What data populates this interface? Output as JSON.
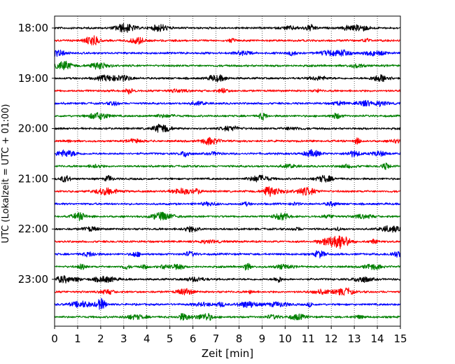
{
  "chart_data": {
    "type": "line",
    "title": "",
    "xlabel": "Zeit  [min]",
    "ylabel": "UTC (Lokalzeit = UTC + 01:00)",
    "xlim": [
      0,
      15
    ],
    "x_ticks": [
      "0",
      "1",
      "2",
      "3",
      "4",
      "5",
      "6",
      "7",
      "8",
      "9",
      "10",
      "11",
      "12",
      "13",
      "14",
      "15"
    ],
    "y_ticks": [
      "18:00",
      "19:00",
      "20:00",
      "21:00",
      "22:00",
      "23:00"
    ],
    "grid": "vertical dotted at each minute",
    "legend": "none",
    "trace_interval_minutes": 15,
    "series": [
      {
        "start": "18:00",
        "color": "#000000"
      },
      {
        "start": "18:15",
        "color": "#ff0000"
      },
      {
        "start": "18:30",
        "color": "#0000ff"
      },
      {
        "start": "18:45",
        "color": "#008000"
      },
      {
        "start": "19:00",
        "color": "#000000"
      },
      {
        "start": "19:15",
        "color": "#ff0000"
      },
      {
        "start": "19:30",
        "color": "#0000ff"
      },
      {
        "start": "19:45",
        "color": "#008000"
      },
      {
        "start": "20:00",
        "color": "#000000"
      },
      {
        "start": "20:15",
        "color": "#ff0000"
      },
      {
        "start": "20:30",
        "color": "#0000ff"
      },
      {
        "start": "20:45",
        "color": "#008000"
      },
      {
        "start": "21:00",
        "color": "#000000"
      },
      {
        "start": "21:15",
        "color": "#ff0000"
      },
      {
        "start": "21:30",
        "color": "#0000ff"
      },
      {
        "start": "21:45",
        "color": "#008000"
      },
      {
        "start": "22:00",
        "color": "#000000"
      },
      {
        "start": "22:15",
        "color": "#ff0000"
      },
      {
        "start": "22:30",
        "color": "#0000ff"
      },
      {
        "start": "22:45",
        "color": "#008000"
      },
      {
        "start": "23:00",
        "color": "#000000"
      },
      {
        "start": "23:15",
        "color": "#ff0000"
      },
      {
        "start": "23:30",
        "color": "#0000ff"
      },
      {
        "start": "23:45",
        "color": "#008000"
      }
    ]
  }
}
